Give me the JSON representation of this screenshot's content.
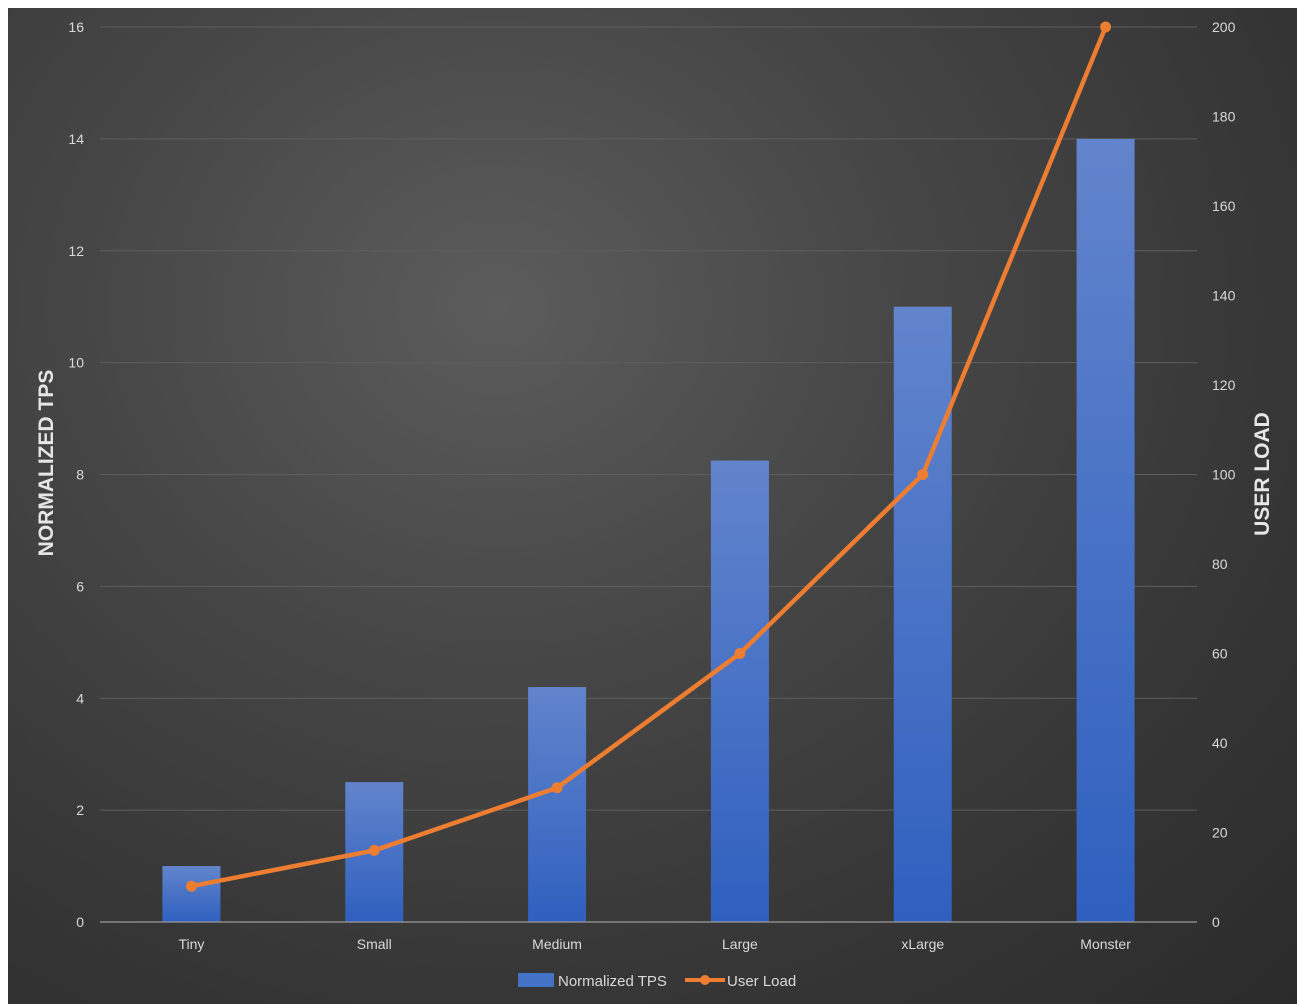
{
  "chart_data": {
    "type": "bar",
    "title": "",
    "categories": [
      "Tiny",
      "Small",
      "Medium",
      "Large",
      "xLarge",
      "Monster"
    ],
    "series": [
      {
        "name": "Normalized TPS",
        "type": "bar",
        "axis": "left",
        "color": "#4472c4",
        "values": [
          1.0,
          2.5,
          4.2,
          8.25,
          11.0,
          14.0
        ]
      },
      {
        "name": "User Load",
        "type": "line",
        "axis": "right",
        "color": "#ed7d31",
        "values": [
          8,
          16,
          30,
          60,
          100,
          200
        ]
      }
    ],
    "ylabel": "NORMALIZED TPS",
    "ylim": [
      0,
      16
    ],
    "yticks": [
      "0",
      "2",
      "4",
      "6",
      "8",
      "10",
      "12",
      "14",
      "16"
    ],
    "y2label": "USER LOAD",
    "y2lim": [
      0,
      200
    ],
    "y2ticks": [
      "0",
      "20",
      "40",
      "60",
      "80",
      "100",
      "120",
      "140",
      "160",
      "180",
      "200"
    ],
    "grid": true,
    "legend_position": "bottom"
  }
}
